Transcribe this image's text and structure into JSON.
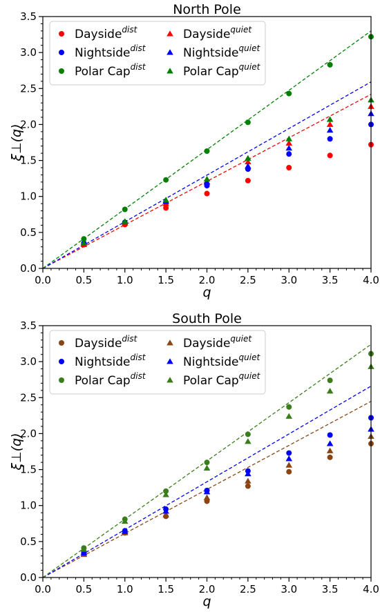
{
  "chart_data": [
    {
      "type": "scatter",
      "title": "North Pole",
      "xlabel": "q",
      "ylabel": "ξ⊥(q)",
      "xlim": [
        0,
        4
      ],
      "ylim": [
        0,
        3.5
      ],
      "x_ticks": [
        "0.0",
        "0.5",
        "1.0",
        "1.5",
        "2.0",
        "2.5",
        "3.0",
        "3.5",
        "4.0"
      ],
      "y_ticks": [
        "0.0",
        "0.5",
        "1.0",
        "1.5",
        "2.0",
        "2.5",
        "3.0",
        "3.5"
      ],
      "legend_position": "top-left",
      "legend_columns": 2,
      "x": [
        0.5,
        1.0,
        1.5,
        2.0,
        2.5,
        3.0,
        3.5,
        4.0
      ],
      "series": [
        {
          "name": "Dayside",
          "sup": "dist",
          "marker": "circle",
          "color": "#ff0000",
          "values": [
            0.33,
            0.61,
            0.84,
            1.04,
            1.22,
            1.4,
            1.57,
            1.72
          ]
        },
        {
          "name": "Nightside",
          "sup": "dist",
          "marker": "circle",
          "color": "#0000ff",
          "values": [
            0.35,
            0.64,
            0.91,
            1.15,
            1.38,
            1.59,
            1.8,
            2.0
          ]
        },
        {
          "name": "Polar Cap",
          "sup": "dist",
          "marker": "circle",
          "color": "#008000",
          "values": [
            0.41,
            0.82,
            1.23,
            1.63,
            2.03,
            2.43,
            2.83,
            3.22
          ]
        },
        {
          "name": "Dayside",
          "sup": "quiet",
          "marker": "triangle",
          "color": "#ff0000",
          "values": [
            0.33,
            0.63,
            0.9,
            1.2,
            1.48,
            1.74,
            2.0,
            2.25
          ]
        },
        {
          "name": "Nightside",
          "sup": "quiet",
          "marker": "triangle",
          "color": "#0000ff",
          "values": [
            0.35,
            0.65,
            0.93,
            1.2,
            1.42,
            1.67,
            1.92,
            2.15
          ]
        },
        {
          "name": "Polar Cap",
          "sup": "quiet",
          "marker": "triangle",
          "color": "#008000",
          "values": [
            0.35,
            0.65,
            0.95,
            1.24,
            1.53,
            1.8,
            2.07,
            2.34
          ]
        }
      ],
      "reference_lines": [
        {
          "color": "#ff0000",
          "style": "dashed",
          "slope": 0.605
        },
        {
          "color": "#0000ff",
          "style": "dashed",
          "slope": 0.648
        },
        {
          "color": "#008000",
          "style": "dashed",
          "slope": 0.825
        }
      ]
    },
    {
      "type": "scatter",
      "title": "South Pole",
      "xlabel": "q",
      "ylabel": "ξ⊥(q)",
      "xlim": [
        0,
        4
      ],
      "ylim": [
        0,
        3.5
      ],
      "x_ticks": [
        "0.0",
        "0.5",
        "1.0",
        "1.5",
        "2.0",
        "2.5",
        "3.0",
        "3.5",
        "4.0"
      ],
      "y_ticks": [
        "0.0",
        "0.5",
        "1.0",
        "1.5",
        "2.0",
        "2.5",
        "3.0",
        "3.5"
      ],
      "legend_position": "top-left",
      "legend_columns": 2,
      "x": [
        0.5,
        1.0,
        1.5,
        2.0,
        2.5,
        3.0,
        3.5,
        4.0
      ],
      "series": [
        {
          "name": "Dayside",
          "sup": "dist",
          "marker": "circle",
          "color": "#8b4513",
          "values": [
            0.33,
            0.62,
            0.85,
            1.06,
            1.27,
            1.47,
            1.67,
            1.86
          ]
        },
        {
          "name": "Nightside",
          "sup": "dist",
          "marker": "circle",
          "color": "#0000ff",
          "values": [
            0.34,
            0.65,
            0.95,
            1.21,
            1.48,
            1.73,
            1.98,
            2.22
          ]
        },
        {
          "name": "Polar Cap",
          "sup": "dist",
          "marker": "circle",
          "color": "#3a7d1a",
          "values": [
            0.41,
            0.81,
            1.2,
            1.6,
            1.99,
            2.37,
            2.74,
            3.11
          ]
        },
        {
          "name": "Dayside",
          "sup": "quiet",
          "marker": "triangle",
          "color": "#8b4513",
          "values": [
            0.32,
            0.62,
            0.87,
            1.11,
            1.34,
            1.56,
            1.76,
            1.96
          ]
        },
        {
          "name": "Nightside",
          "sup": "quiet",
          "marker": "triangle",
          "color": "#0000ff",
          "values": [
            0.34,
            0.64,
            0.92,
            1.19,
            1.44,
            1.65,
            1.86,
            2.06
          ]
        },
        {
          "name": "Polar Cap",
          "sup": "quiet",
          "marker": "triangle",
          "color": "#3a7d1a",
          "values": [
            0.39,
            0.78,
            1.15,
            1.52,
            1.89,
            2.24,
            2.59,
            2.93
          ]
        }
      ],
      "reference_lines": [
        {
          "color": "#8b4513",
          "style": "dashed",
          "slope": 0.612
        },
        {
          "color": "#0000ff",
          "style": "dashed",
          "slope": 0.665
        },
        {
          "color": "#3a7d1a",
          "style": "dashed",
          "slope": 0.81
        }
      ]
    }
  ]
}
